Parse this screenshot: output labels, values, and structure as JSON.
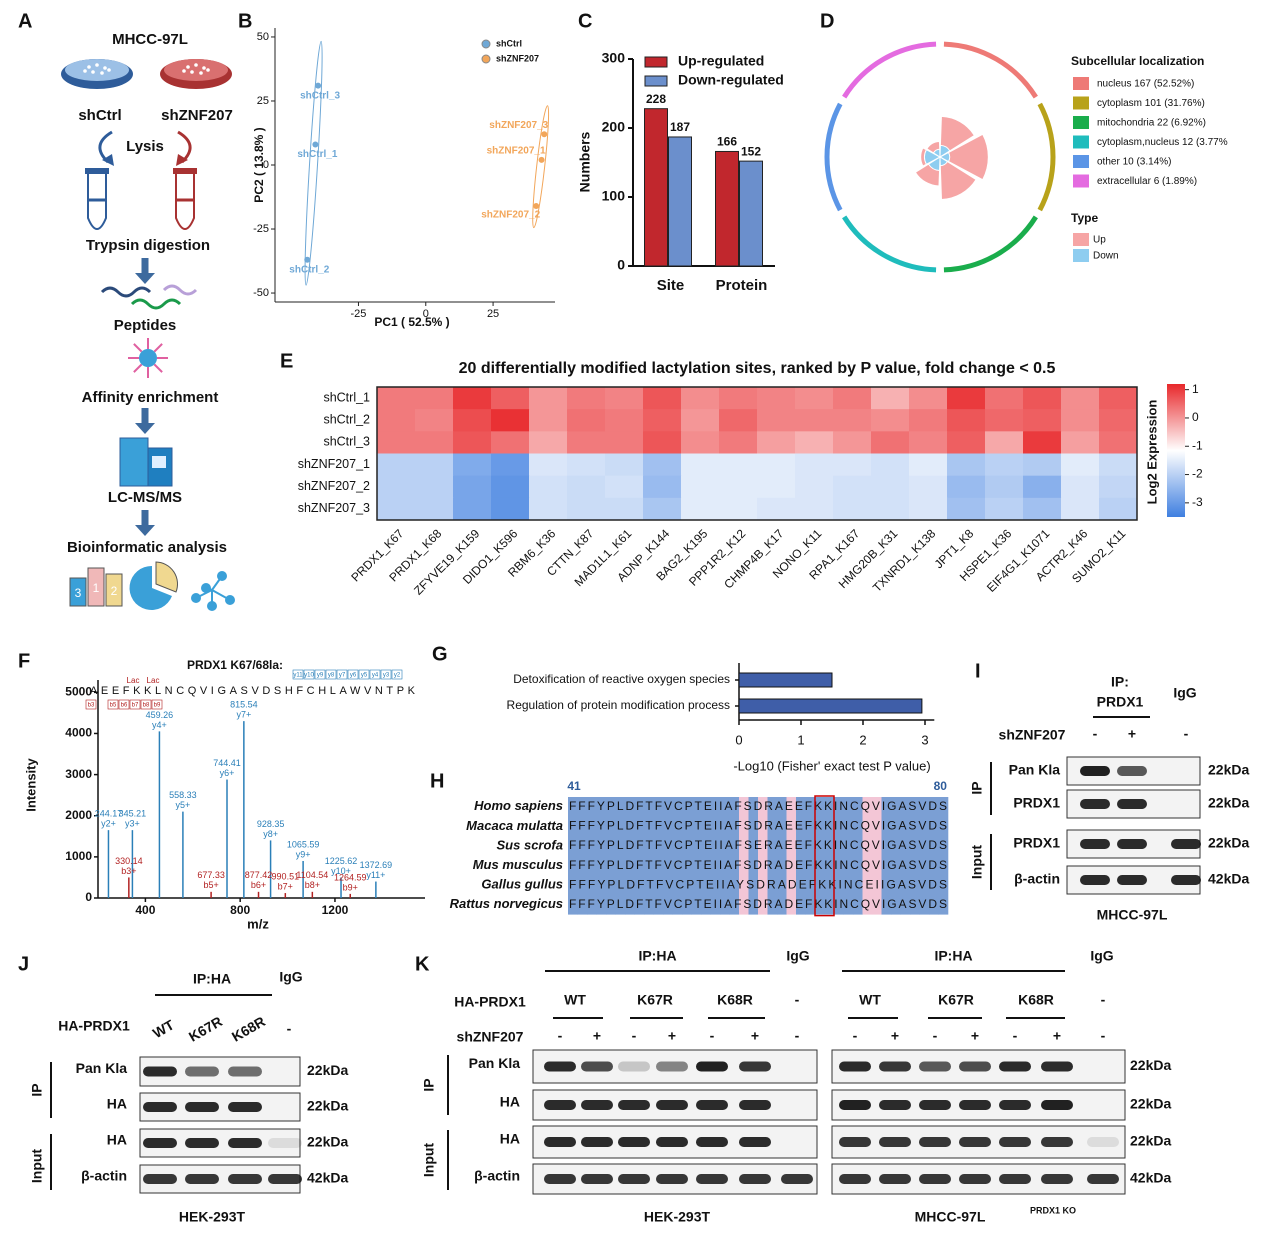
{
  "panel_labels": [
    "A",
    "B",
    "C",
    "D",
    "E",
    "F",
    "G",
    "H",
    "I",
    "J",
    "K"
  ],
  "workflow": {
    "cell_line": "MHCC-97L",
    "groups": [
      "shCtrl",
      "shZNF207"
    ],
    "steps": [
      "Lysis",
      "Trypsin digestion",
      "Peptides",
      "Affinity enrichment",
      "LC-MS/MS",
      "Bioinformatic analysis"
    ],
    "icon_bar_labels": [
      "3",
      "1",
      "2"
    ]
  },
  "chart_data": [
    {
      "type": "scatter",
      "xlabel": "PC1 ( 52.5% )",
      "ylabel": "PC2 ( 13.8% )",
      "xlim": [
        -56,
        48
      ],
      "ylim": [
        -53.5,
        53.5
      ],
      "xticks": [
        -25,
        0,
        25
      ],
      "yticks": [
        50,
        25,
        0,
        -25,
        -50
      ],
      "series": [
        {
          "name": "shCtrl",
          "color": "#6fa8d6",
          "labels": [
            "shCtrl_3",
            "shCtrl_1",
            "shCtrl_2"
          ],
          "x": [
            -40,
            -41,
            -44
          ],
          "y": [
            31,
            8,
            -37
          ]
        },
        {
          "name": "shZNF207",
          "color": "#f2a65a",
          "labels": [
            "shZNF207_3",
            "shZNF207_1",
            "shZNF207_2"
          ],
          "x": [
            44,
            43,
            41
          ],
          "y": [
            12,
            2,
            -16
          ]
        }
      ]
    },
    {
      "type": "bar",
      "ylabel": "Numbers",
      "categories": [
        "Site",
        "Protein"
      ],
      "ylim": [
        0,
        300
      ],
      "yticks": [
        0,
        100,
        200,
        300
      ],
      "series": [
        {
          "name": "Up-regulated",
          "color": "#c1272d",
          "values": [
            228,
            166
          ]
        },
        {
          "name": "Down-regulated",
          "color": "#6b8fcc",
          "values": [
            187,
            152
          ]
        }
      ]
    },
    {
      "type": "rose",
      "legend_title": "Subcellular localization",
      "categories": [
        "nucleus 167 (52.52%)",
        "cytoplasm 101 (31.76%)",
        "mitochondria 22 (6.92%)",
        "cytoplasm,nucleus 12 (3.77%",
        "other 10 (3.14%)",
        "extracellular 6 (1.89%)"
      ],
      "category_colors": [
        "#ee7a76",
        "#b8a21a",
        "#1aad4c",
        "#1fbcbc",
        "#5b95e6",
        "#e46be0"
      ],
      "type_title": "Type",
      "ylim": [
        0,
        60
      ],
      "series": [
        {
          "name": "Up",
          "color": "#f6a5a5",
          "values": [
            42,
            50,
            44,
            30,
            20,
            16
          ]
        },
        {
          "name": "Down",
          "color": "#8ecdf0",
          "values": [
            12,
            10,
            9,
            14,
            16,
            8
          ]
        }
      ]
    },
    {
      "type": "heatmap",
      "title": "20 differentially modified lactylation sites, ranked by P value, fold change < 0.5",
      "rows": [
        "shCtrl_1",
        "shCtrl_2",
        "shCtrl_3",
        "shZNF207_1",
        "shZNF207_2",
        "shZNF207_3"
      ],
      "columns": [
        "PRDX1_K67",
        "PRDX1_K68",
        "ZFYVE19_K159",
        "DIDO1_K596",
        "RBM6_K36",
        "CTTN_K87",
        "MAD1L1_K61",
        "ADNP_K144",
        "BAG2_K195",
        "PPP1R2_K12",
        "CHMP4B_K17",
        "NONO_K11",
        "RPA1_K167",
        "HMG20B_K31",
        "TXNRD1_K138",
        "JPT1_K8",
        "HSPE1_K36",
        "EIF4G1_K1071",
        "ACTR2_K46",
        "SUMO2_K11"
      ],
      "values": [
        [
          0.3,
          0.3,
          1.0,
          0.6,
          0,
          0.3,
          0.2,
          0.7,
          0.1,
          0.3,
          0.2,
          0.1,
          0.3,
          -0.3,
          0.1,
          1.0,
          0.4,
          0.7,
          0.1,
          0.6
        ],
        [
          0.3,
          0.2,
          0.8,
          1.1,
          0,
          0.4,
          0.3,
          0.6,
          0,
          0.5,
          0.2,
          0.2,
          0.2,
          0.1,
          0.3,
          0.7,
          0.5,
          0.6,
          0.1,
          0.5
        ],
        [
          0.3,
          0.3,
          0.7,
          0.4,
          -0.2,
          0.3,
          0.3,
          0.7,
          0.1,
          0.3,
          -0.1,
          -0.3,
          0,
          0.4,
          0.2,
          0.6,
          -0.2,
          1.0,
          -0.1,
          0.4
        ],
        [
          -2,
          -2,
          -2.7,
          -3,
          -1.6,
          -1.7,
          -1.8,
          -2.3,
          -1.5,
          -1.5,
          -1.5,
          -1.6,
          -1.6,
          -1.7,
          -1.5,
          -2.2,
          -2,
          -2.1,
          -1.5,
          -1.8
        ],
        [
          -2,
          -2,
          -2.8,
          -3.1,
          -1.7,
          -1.8,
          -1.7,
          -2.4,
          -1.5,
          -1.5,
          -1.5,
          -1.6,
          -1.7,
          -1.7,
          -1.6,
          -2.4,
          -2.1,
          -2.6,
          -1.6,
          -1.9
        ],
        [
          -2,
          -2,
          -2.8,
          -3.1,
          -1.7,
          -1.8,
          -1.8,
          -2.2,
          -1.5,
          -1.5,
          -1.6,
          -1.6,
          -1.7,
          -1.7,
          -1.6,
          -2.3,
          -2,
          -2.3,
          -1.6,
          -2
        ]
      ],
      "colorbar_label": "Log2 Expression",
      "zlim": [
        -3.5,
        1.2
      ],
      "zticks": [
        1,
        0,
        -1,
        -2,
        -3
      ],
      "colors": [
        "#3f7fe0",
        "#ffffff",
        "#e8282b"
      ]
    },
    {
      "type": "spectrum",
      "title": "PRDX1 K67/68la:",
      "sequence": "AEEFKKLNCQVIGASVDSHFCHLAWVNTPK",
      "modification_labels": [
        "Lac",
        "Lac"
      ],
      "sequence_y_tags": [
        "y11",
        "y10",
        "y9",
        "y8",
        "y7",
        "y6",
        "y5",
        "y4",
        "y3",
        "y2"
      ],
      "sequence_b_tags": [
        "b3",
        "b5",
        "b6",
        "b7",
        "b8",
        "b9"
      ],
      "xlabel": "m/z",
      "ylabel": "Intensity",
      "xlim": [
        200,
        1580
      ],
      "ylim": [
        0,
        5300
      ],
      "xticks": [
        400,
        800,
        1200
      ],
      "yticks": [
        0,
        1000,
        2000,
        3000,
        4000,
        5000
      ],
      "series": [
        {
          "color": "#2a7fb8",
          "x": [
            244.17,
            345.21,
            459.26,
            558.33,
            744.41,
            815.54,
            928.35,
            1065.59,
            1225.62,
            1372.69
          ],
          "values": [
            1650,
            1650,
            4050,
            2100,
            2880,
            4300,
            1400,
            900,
            500,
            400
          ],
          "ion_labels": [
            "y2+",
            "y3+",
            "y4+",
            "y5+",
            "y6+",
            "y7+",
            "y8+",
            "y9+",
            "y10+",
            "y11+"
          ]
        },
        {
          "color": "#b22222",
          "x": [
            330.14,
            677.33,
            877.42,
            990.51,
            1104.54,
            1264.59
          ],
          "values": [
            500,
            150,
            150,
            120,
            150,
            100
          ],
          "ion_labels": [
            "b3+",
            "b5+",
            "b6+",
            "b7+",
            "b8+",
            "b9+"
          ]
        }
      ]
    },
    {
      "type": "barh",
      "categories": [
        "Detoxification of reactive oxygen species",
        "Regulation of protein modification process"
      ],
      "values": [
        1.5,
        2.95
      ],
      "color": "#3f5ea8",
      "xlim": [
        0,
        3.15
      ],
      "xticks": [
        0,
        1,
        2,
        3
      ],
      "xlabel": "-Log10 (Fisher' exact test P value)"
    }
  ],
  "alignment": {
    "start": 41,
    "end": 80,
    "species": [
      "Homo sapiens",
      "Macaca mulatta",
      "Sus scrofa",
      "Mus musculus",
      "Gallus gullus",
      "Rattus norvegicus"
    ],
    "sequences": [
      "FFFYPLDFTFVCPTEIIAFSDRAEEFKKINCQVIGASVDS",
      "FFFYPLDFTFVCPTEIIAFSDRAEEFKKINCQVIGASVDS",
      "FFFYPLDFTFVCPTEIIAFSERAEEFKKINCQVIGASVDS",
      "FFFYPLDFTFVCPTEIIAFSDRADEFKKINCQVIGASVDS",
      "FFFYPLDFTFVCPTEIIAYSDRADEFKKINCEIIGASVDS",
      "FFFYPLDFTFVCPTEIIAFSDRADEFKKINCQVIGASVDS"
    ]
  },
  "blot_I": {
    "ip_label": "IP:",
    "ip_target": "PRDX1",
    "igg": "IgG",
    "condition_label": "shZNF207",
    "conditions": [
      "-",
      "+",
      "-"
    ],
    "rows": [
      "Pan Kla",
      "PRDX1",
      "PRDX1",
      "β-actin"
    ],
    "sizes": [
      "22kDa",
      "22kDa",
      "22kDa",
      "42kDa"
    ],
    "sections": [
      "IP",
      "Input"
    ],
    "cell_line": "MHCC-97L"
  },
  "blot_J": {
    "ip_label": "IP:HA",
    "igg": "IgG",
    "construct_label": "HA-PRDX1",
    "constructs": [
      "WT",
      "K67R",
      "K68R",
      "-"
    ],
    "rows": [
      "Pan Kla",
      "HA",
      "HA",
      "β-actin"
    ],
    "sizes": [
      "22kDa",
      "22kDa",
      "22kDa",
      "42kDa"
    ],
    "sections": [
      "IP",
      "Input"
    ],
    "cell_line": "HEK-293T"
  },
  "blot_K": {
    "construct_label": "HA-PRDX1",
    "condition_label": "shZNF207",
    "rows": [
      "Pan Kla",
      "HA",
      "HA",
      "β-actin"
    ],
    "sizes": [
      "22kDa",
      "22kDa",
      "22kDa",
      "42kDa"
    ],
    "sections": [
      "IP",
      "Input"
    ],
    "panels": [
      {
        "ip_label": "IP:HA",
        "igg": "IgG",
        "constructs": [
          "WT",
          "K67R",
          "K68R",
          "-"
        ],
        "conditions": [
          "-",
          "+",
          "-",
          "+",
          "-",
          "+",
          "-"
        ],
        "cell_line": "HEK-293T"
      },
      {
        "ip_label": "IP:HA",
        "igg": "IgG",
        "constructs": [
          "WT",
          "K67R",
          "K68R",
          "-"
        ],
        "conditions": [
          "-",
          "+",
          "-",
          "+",
          "-",
          "+",
          "-"
        ],
        "cell_line": "MHCC-97L",
        "cell_line_note": "PRDX1 KO"
      }
    ]
  }
}
